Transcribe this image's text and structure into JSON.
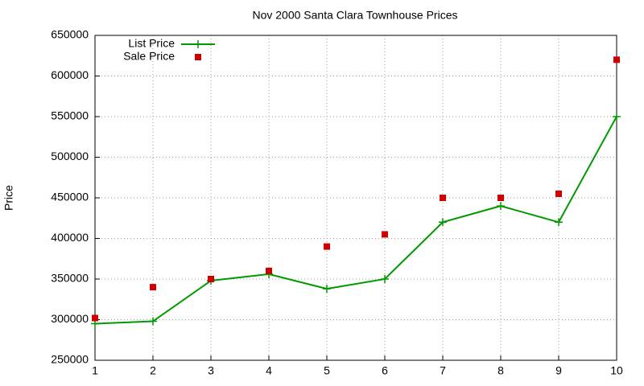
{
  "chart_data": {
    "type": "line",
    "title": "Nov 2000 Santa Clara Townhouse Prices",
    "y_label": "Price",
    "x": [
      1,
      2,
      3,
      4,
      5,
      6,
      7,
      8,
      9,
      10
    ],
    "series": [
      {
        "name": "List Price",
        "color": "#009900",
        "marker": "plus",
        "line": true,
        "values": [
          295000,
          298000,
          348000,
          356000,
          338000,
          350000,
          420000,
          440000,
          420000,
          550000
        ]
      },
      {
        "name": "Sale Price",
        "color": "#cc0000",
        "marker": "square",
        "line": false,
        "values": [
          302000,
          340000,
          350000,
          360000,
          390000,
          405000,
          450000,
          450000,
          455000,
          620000
        ]
      }
    ],
    "xlim": [
      1,
      10
    ],
    "xticks": [
      1,
      2,
      3,
      4,
      5,
      6,
      7,
      8,
      9,
      10
    ],
    "ylim": [
      250000,
      650000
    ],
    "yticks": [
      250000,
      300000,
      350000,
      400000,
      450000,
      500000,
      550000,
      600000,
      650000
    ],
    "grid": true,
    "legend": "top-left"
  }
}
